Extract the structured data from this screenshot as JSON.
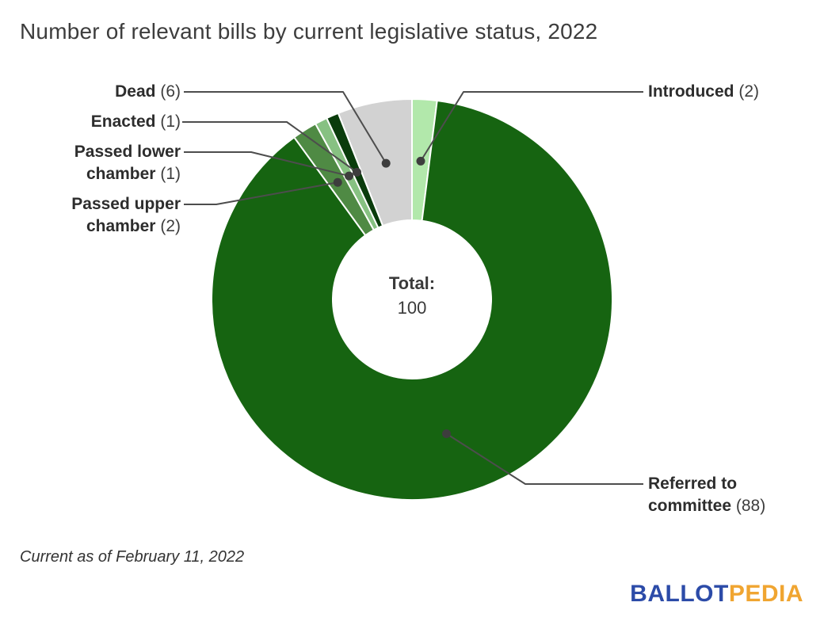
{
  "title": "Number of relevant bills by current legislative status, 2022",
  "footnote": "Current as of February 11, 2022",
  "center": {
    "label": "Total:",
    "value": "100"
  },
  "logo": {
    "part1": "BALLOT",
    "part2": "PEDIA",
    "part1_color": "#2c4ba8",
    "part2_color": "#f0a531"
  },
  "chart_data": {
    "type": "pie",
    "subtype": "donut",
    "title": "Number of relevant bills by current legislative status, 2022",
    "total": 100,
    "center_label": "Total: 100",
    "start_angle_deg": 0,
    "direction": "clockwise",
    "donut_hole_ratio": 0.4,
    "separator_color": "#ffffff",
    "leader_line_color": "#4d4d4d",
    "slices": [
      {
        "label": "Introduced",
        "value": 2,
        "count_label": "(2)",
        "color": "#b2e8ab"
      },
      {
        "label": "Referred to committee",
        "value": 88,
        "count_label": "(88)",
        "color": "#166411"
      },
      {
        "label": "Passed upper chamber",
        "value": 2,
        "count_label": "(2)",
        "color": "#4f8a44"
      },
      {
        "label": "Passed lower chamber",
        "value": 1,
        "count_label": "(1)",
        "color": "#87c182"
      },
      {
        "label": "Enacted",
        "value": 1,
        "count_label": "(1)",
        "color": "#0a3c0c"
      },
      {
        "label": "Dead",
        "value": 6,
        "count_label": "(6)",
        "color": "#d2d2d2"
      }
    ]
  }
}
